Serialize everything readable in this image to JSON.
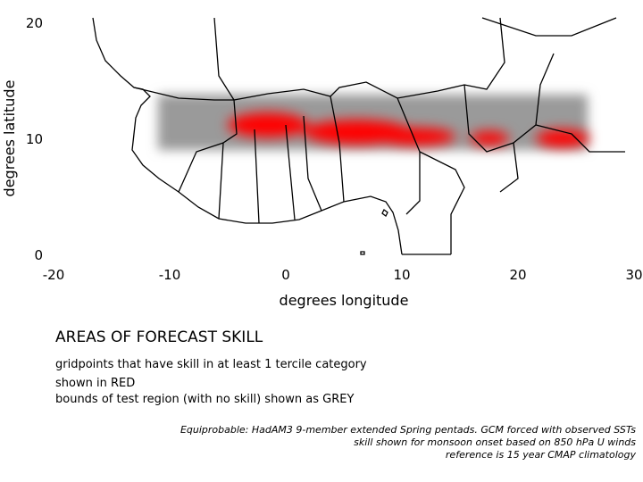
{
  "axes": {
    "y_label": "degrees latitude",
    "x_label": "degrees longitude",
    "xlim": [
      -20,
      30
    ],
    "ylim": [
      0,
      20
    ],
    "xticks": [
      -20,
      -10,
      0,
      10,
      20,
      30
    ],
    "yticks": [
      0,
      10,
      20
    ]
  },
  "legend": {
    "title": "AREAS OF FORECAST SKILL",
    "lines": [
      "gridpoints that have skill in at least 1 tercile category",
      "shown in RED",
      "bounds of test region (with no skill) shown as GREY"
    ]
  },
  "caption": {
    "lines": [
      "Equiprobable: HadAM3 9-member extended Spring pentads. GCM forced with observed SSTs",
      "skill shown for monsoon onset based on 850 hPa U winds",
      "reference is 15 year CMAP climatology"
    ]
  }
}
